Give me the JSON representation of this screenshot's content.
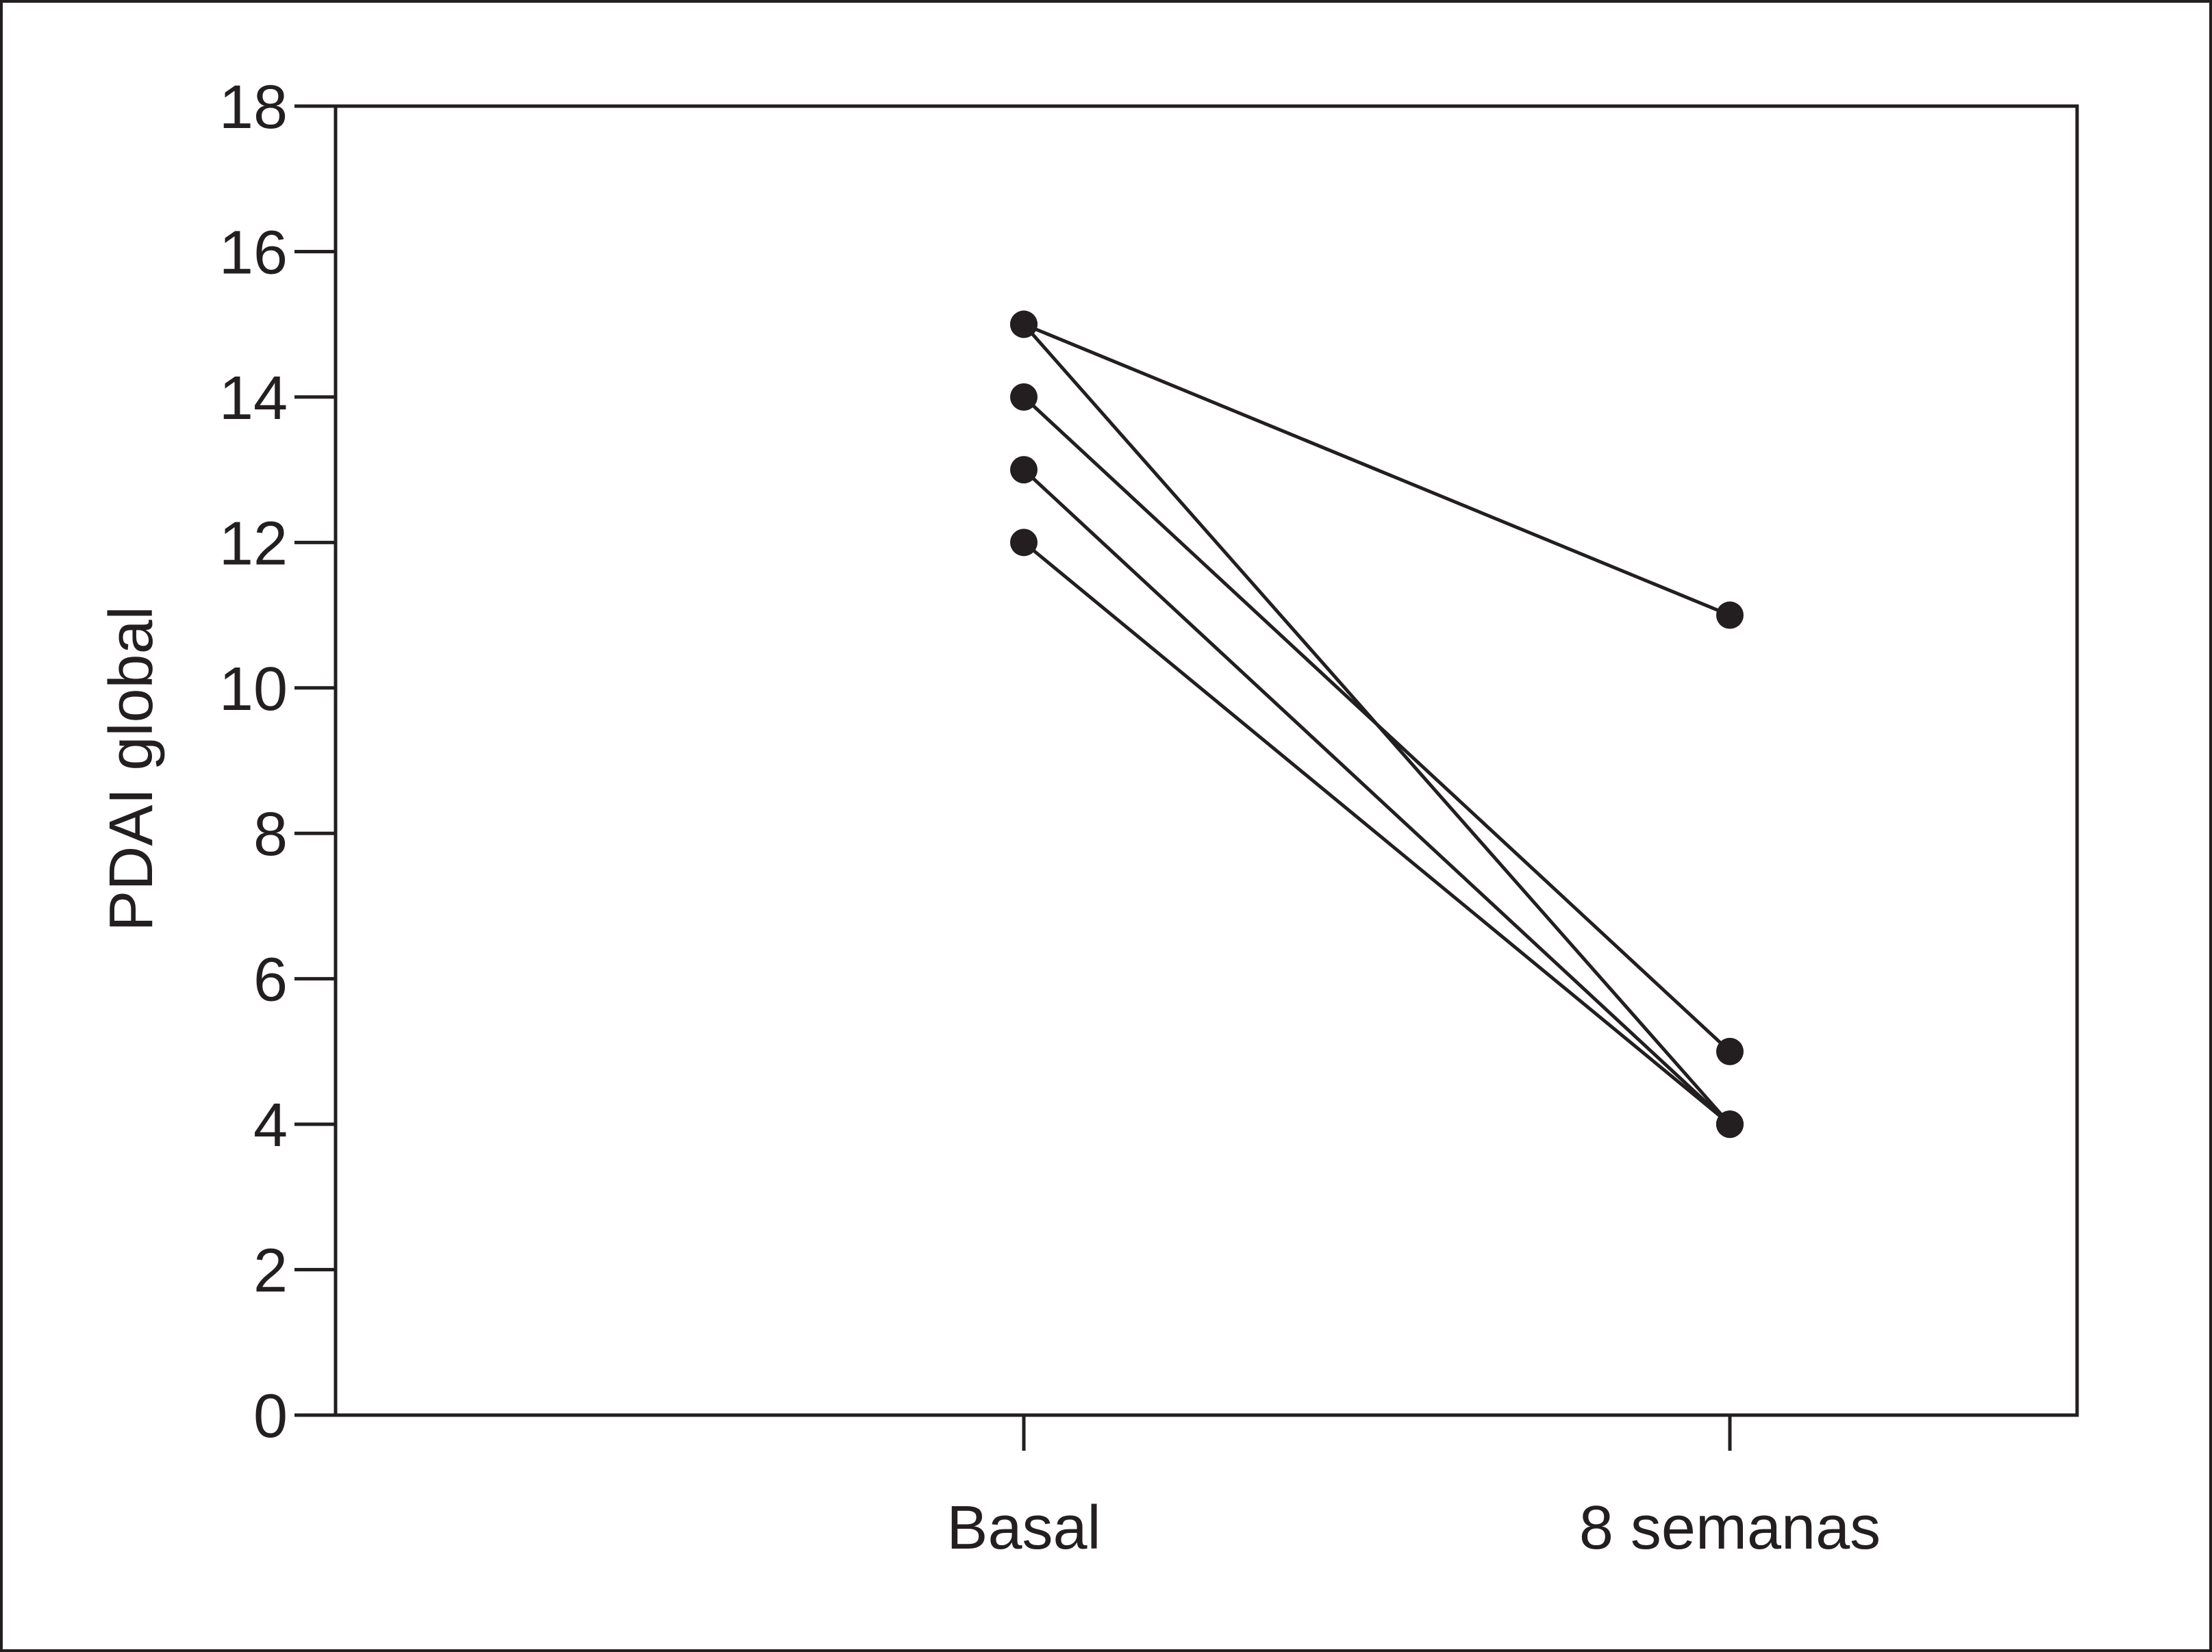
{
  "chart_data": {
    "type": "line",
    "title": "",
    "xlabel": "",
    "ylabel": "PDAI global",
    "categories": [
      "Basal",
      "8 semanas"
    ],
    "ylim": [
      0,
      18
    ],
    "yticks": [
      0,
      2,
      4,
      6,
      8,
      10,
      12,
      14,
      16,
      18
    ],
    "grid": false,
    "series": [
      {
        "values": [
          15,
          11
        ]
      },
      {
        "values": [
          15,
          4
        ]
      },
      {
        "values": [
          14,
          5
        ]
      },
      {
        "values": [
          13,
          4
        ]
      },
      {
        "values": [
          12,
          4
        ]
      }
    ],
    "colors": {
      "ink": "#231f20"
    }
  }
}
